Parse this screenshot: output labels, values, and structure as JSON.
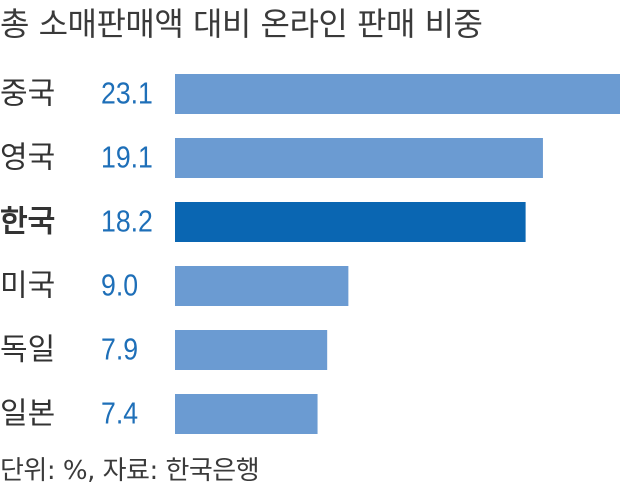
{
  "chart_data": {
    "type": "bar",
    "orientation": "horizontal",
    "title": "총 소매판매액 대비 온라인 판매 비중",
    "categories": [
      "중국",
      "영국",
      "한국",
      "미국",
      "독일",
      "일본"
    ],
    "values": [
      23.1,
      19.1,
      18.2,
      9.0,
      7.9,
      7.4
    ],
    "value_labels": [
      "23.1",
      "19.1",
      "18.2",
      "9.0",
      "7.9",
      "7.4"
    ],
    "highlight_category": "한국",
    "xlim": [
      0,
      23.1
    ],
    "grid": false,
    "source": "단위: %, 자료: 한국은행"
  },
  "colors": {
    "bar": "#6b9bd2",
    "bar_highlight": "#0a66b2",
    "value_text": "#1e6fb8",
    "label_text": "#333333",
    "title_text": "#3a3a3a"
  }
}
